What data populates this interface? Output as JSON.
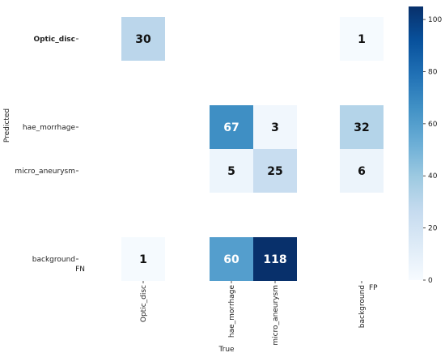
{
  "chart_data": {
    "type": "heatmap",
    "title": "",
    "xlabel": "True",
    "ylabel": "Predicted",
    "x_categories": [
      "Optic_disc",
      "hae_morrhage",
      "micro_aneurysm",
      "background"
    ],
    "y_categories": [
      "Optic_disc",
      "hae_morrhage",
      "micro_aneurysm",
      "background"
    ],
    "cells": [
      {
        "predicted": "Optic_disc",
        "true": "Optic_disc",
        "value": 30
      },
      {
        "predicted": "Optic_disc",
        "true": "background",
        "value": 1
      },
      {
        "predicted": "hae_morrhage",
        "true": "hae_morrhage",
        "value": 67
      },
      {
        "predicted": "hae_morrhage",
        "true": "micro_aneurysm",
        "value": 3
      },
      {
        "predicted": "hae_morrhage",
        "true": "background",
        "value": 32
      },
      {
        "predicted": "micro_aneurysm",
        "true": "hae_morrhage",
        "value": 5
      },
      {
        "predicted": "micro_aneurysm",
        "true": "micro_aneurysm",
        "value": 25
      },
      {
        "predicted": "micro_aneurysm",
        "true": "background",
        "value": 6
      },
      {
        "predicted": "background",
        "true": "Optic_disc",
        "value": 1
      },
      {
        "predicted": "background",
        "true": "hae_morrhage",
        "value": 60
      },
      {
        "predicted": "background",
        "true": "micro_aneurysm",
        "value": 118
      }
    ],
    "annotations": {
      "fn": "FN",
      "fp": "FP"
    },
    "colorbar": {
      "min": 0,
      "max": 105,
      "ticks": [
        0,
        20,
        40,
        60,
        80,
        100
      ],
      "colormap": "Blues",
      "low_color": "#f7fbff",
      "high_color": "#08306b"
    },
    "grid": false
  }
}
